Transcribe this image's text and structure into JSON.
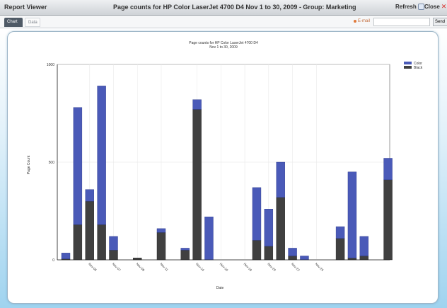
{
  "window": {
    "app_name": "Report Viewer",
    "title": "Page counts for HP Color LaserJet 4700 D4 Nov 1 to 30, 2009 - Group: Marketing",
    "refresh_label": "Refresh",
    "close_label": "Close"
  },
  "toolbar": {
    "tabs": [
      {
        "label": "Chart",
        "active": true
      },
      {
        "label": "Data",
        "active": false
      }
    ],
    "email_label": "E-mail",
    "email_value": "",
    "send_label": "Send"
  },
  "colors": {
    "color_series": "#4a5ab8",
    "black_series": "#404040",
    "background_gradient_bottom": "#9fd3ef"
  },
  "chart_data": {
    "type": "bar",
    "stacked": true,
    "title": "Page counts for HP Color LaserJet 4700 D4",
    "subtitle": "Nov 1 to 30, 2009",
    "xlabel": "Date",
    "ylabel": "Page Count",
    "ylim": [
      0,
      1000
    ],
    "y_ticks": [
      0,
      500,
      1000
    ],
    "grid": true,
    "legend": "top-right",
    "x_tick_labels": [
      "Nov-05",
      "Nov-07",
      "Nov-09",
      "Nov-11",
      "Nov-14",
      "Nov-16",
      "Nov-18",
      "Nov-20",
      "Nov-22",
      "Nov-24"
    ],
    "x_tick_label_days": [
      5,
      7,
      9,
      11,
      14,
      16,
      18,
      20,
      22,
      24
    ],
    "days": [
      3,
      4,
      5,
      6,
      7,
      8,
      9,
      10,
      11,
      12,
      13,
      14,
      15,
      16,
      17,
      18,
      19,
      20,
      21,
      22,
      23,
      24,
      25,
      26,
      27,
      28,
      29,
      30
    ],
    "series": [
      {
        "name": "Color",
        "values": [
          30,
          600,
          60,
          710,
          70,
          0,
          0,
          0,
          20,
          0,
          10,
          50,
          220,
          0,
          0,
          0,
          270,
          190,
          180,
          40,
          20,
          0,
          0,
          60,
          440,
          100,
          0,
          0
        ]
      },
      {
        "name": "Black",
        "values": [
          5,
          180,
          300,
          180,
          50,
          0,
          10,
          0,
          140,
          0,
          50,
          770,
          0,
          0,
          0,
          0,
          100,
          70,
          320,
          20,
          0,
          0,
          0,
          110,
          10,
          20,
          0,
          0
        ]
      }
    ],
    "extra_series": {
      "days": [
        30
      ],
      "color_values": [
        110
      ],
      "black_values": [
        410
      ]
    }
  }
}
